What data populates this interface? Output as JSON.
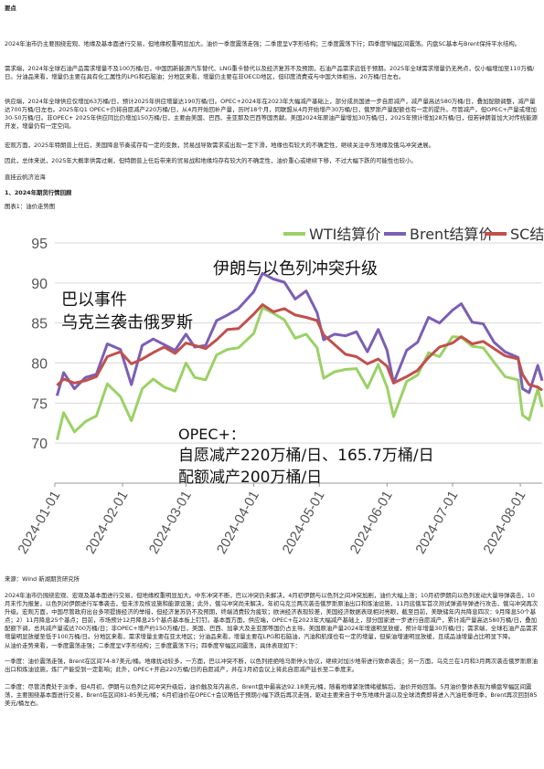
{
  "doc": {
    "heading_points": "要点",
    "para1": "2024年油市仍主要围绕宏观、地缘及基本面进行交易，但地缘权重明显加大。油价一季度震荡走强；二季度呈V字形结构；三季度震荡下行；四季度窄幅区间震荡。内盘SC基本与Brent保持平水结构。",
    "para2": "需求端，2024年全球石油产品需求增量不及100万桶/日，中国因新能源汽车替代、LNG重卡替代以及经济复苏不及预期，石油产品需求远低于预期。2025年全球需求增量仍无亮点，仅小幅增加至110万桶/日。分油品来看，增量仍主要在具有化工属性的LPG和石脑油；分地区来看，增量仍主要在非OECD地区，但印度消费或与中国大体相当，20万桶/日左右。",
    "para3": "供应端，2024年全球供应仅增加63万桶/日，预计2025年供应增量达190万桶/日。OPEC+2024年在2023年大幅减产基础上，部分成员国进一步自愿减产，减产量高达580万桶/日，叠加配额调整，减产量达700万桶/日左右。2025年Q1 OPEC+仍将自愿减产220万桶/日，从4月开始回补产量，历时18个月，同联盟从4月开始增产30万桶/日，俄罗斯产量配额也有一定的提升。尽管减产，但OPEC+产量或增加30-50万桶/日。非OPEC+ 2025年供应同比仍增加150万桶/日，主要由美国、巴西、圭亚那及巴西等国贡献。美国2024年原油产量增加30万桶/日，2025年预计增加28万桶/日，但若钟朗普加大对传统能源开发，增量仍有一定空间。",
    "para4": "宏观方面，2025年特朗普上任后，美国降息节奏或存有一定的变数，贸易战导致需求或出现一定下滑，地缘也有较大的不确定性，继续关注中东地缘及俄乌冲突进展。",
    "para5": "因此，总体来说，2025年大概率供需过剩，但特朗普上任后带来的贸易战和地缘均存有较大的不确定性，油价重心或继续下移，不过大幅下跌的可能性也较小。",
    "author": "直挂云帆济沧海",
    "section1": "1、2024年期货行情回顾",
    "figure_caption": "图表1：油价走势图",
    "source": "来源：Wind 新湖期货研究所",
    "para6": "2024年油市仍围绕宏观、宏观及基本面进行交易，但地缘权重明显加大。中东冲突不断，巴以冲突仍未解决，4月初伊朗与以色列之间冲突加剧，油价大幅上涨；10月初伊朗向以色列发动大量导弹袭击，10月末作为报复，以色列对伊朗进行军事袭击，但未涉及核设施和能源设施；此外，俄乌冲突尚未解决，年初乌克兰两次袭击俄罗斯原油出口和炼油设施，11月底俄军首次测试弹道导弹进行攻击，俄乌冲突再次升级。宏观方面，中国尽管政府出台多项提振经济的举措，但经济复苏仍不及预期，终端消费较为疲软；欧洲经济表现较差，美国经济数据表现相对亮眼，截至目前，美联储年内共降息四次：9月降息50个基点；2）11月降息25个基点；目前，市场预计12月降息25个基点基本板上钉钉。基本面方面，供应端，OPEC+在2023年大幅减产基础上，部分国家进一步进行自愿减产，累计减产量高达580万桶/日，叠加配额下调，总共减产量或达700万桶/日；非OPEC+增产约150万桶/日，美国、巴西、加拿大及圭亚那等国仍占主导。美国原油产量2024年增速明显放缓，预计年增量30万桶/日；需求端，全球石油产品需求增量明显放缓至低于100万桶/日。分地区来看，需求增量主要在亚太地区；分油品来看，增量主要在LPG和石脑油，汽油和航煤也有一定的增量，但柴油增速明显放缓，且成品油增量占比明显下降。",
    "para7": "从油价走势来看，一季度震荡走强；二季度呈V字形结构；三季度震荡下行；四季度窄幅区间震荡，具体表现如下：",
    "para8": "一季度：油价震荡走强，Brent在区间74-87美元/桶。地缘扰动较多，一方面，巴以冲突不断，以色列拒绝哈马斯停火协议，继续对加沙地带进行致命袭击；另一方面，乌克兰在1月和3月两次袭击俄罗斯原油出口和炼油设施，炼厂产能受到一定影响；此外，OPEC+开启220万桶/日的自愿减产，并在3月初会议上将此自愿减产延长至二季度末。",
    "para9": "二季度：尽管消费处于淡季，但4月初，伊朗与以色列之间冲突升级后，油价触及年内高点，Brent盘中最高达92.18美元/桶，随着地缘紧张情绪缓解后，油价开始回落。5月油价整体表现为横盘窄幅区间震荡，主要围绕基本面进行交易，Brent在区间81-85美元/桶；6月初油价在OPEC+会议略低于预期小幅下跌后再次走强，驱动主要来自于中东地缘升温以及全球消费即将进入汽油旺季旺季，Brent再次回到85美元/桶左右。"
  },
  "chart_data": {
    "type": "line",
    "title": "",
    "xlabel": "",
    "ylabel": "",
    "ylim": [
      65,
      95
    ],
    "yticks": [
      70,
      75,
      80,
      85,
      90,
      95
    ],
    "x_ticks": [
      "2024-01-01",
      "2024-02-01",
      "2024-03-01",
      "2024-04-01",
      "2024-05-01",
      "2024-06-01",
      "2024-07-01",
      "2024-08-01"
    ],
    "x_start": "2024-01-01",
    "x_end": "2024-08-11",
    "legend": "top-right",
    "series": [
      {
        "name": "WTI结算价",
        "color": "#9bd166",
        "points": [
          [
            "2024-01-02",
            70.4
          ],
          [
            "2024-01-05",
            73.8
          ],
          [
            "2024-01-10",
            71.4
          ],
          [
            "2024-01-15",
            72.7
          ],
          [
            "2024-01-20",
            73.4
          ],
          [
            "2024-01-25",
            77.4
          ],
          [
            "2024-01-31",
            75.8
          ],
          [
            "2024-02-05",
            72.8
          ],
          [
            "2024-02-10",
            76.8
          ],
          [
            "2024-02-15",
            78.0
          ],
          [
            "2024-02-20",
            77.0
          ],
          [
            "2024-02-25",
            76.5
          ],
          [
            "2024-03-01",
            80.0
          ],
          [
            "2024-03-05",
            78.2
          ],
          [
            "2024-03-10",
            77.9
          ],
          [
            "2024-03-15",
            81.0
          ],
          [
            "2024-03-20",
            81.7
          ],
          [
            "2024-03-25",
            81.9
          ],
          [
            "2024-04-01",
            83.7
          ],
          [
            "2024-04-05",
            86.9
          ],
          [
            "2024-04-10",
            86.2
          ],
          [
            "2024-04-15",
            85.4
          ],
          [
            "2024-04-20",
            83.1
          ],
          [
            "2024-04-25",
            83.6
          ],
          [
            "2024-04-30",
            81.9
          ],
          [
            "2024-05-03",
            78.1
          ],
          [
            "2024-05-08",
            78.9
          ],
          [
            "2024-05-13",
            79.2
          ],
          [
            "2024-05-18",
            79.3
          ],
          [
            "2024-05-23",
            76.9
          ],
          [
            "2024-05-28",
            79.8
          ],
          [
            "2024-06-01",
            77.0
          ],
          [
            "2024-06-04",
            73.3
          ],
          [
            "2024-06-10",
            77.7
          ],
          [
            "2024-06-15",
            78.5
          ],
          [
            "2024-06-20",
            81.3
          ],
          [
            "2024-06-25",
            80.8
          ],
          [
            "2024-07-01",
            83.3
          ],
          [
            "2024-07-05",
            83.2
          ],
          [
            "2024-07-10",
            82.1
          ],
          [
            "2024-07-15",
            81.9
          ],
          [
            "2024-07-20",
            80.1
          ],
          [
            "2024-07-25",
            78.3
          ],
          [
            "2024-07-31",
            77.9
          ],
          [
            "2024-08-02",
            73.5
          ],
          [
            "2024-08-05",
            72.9
          ],
          [
            "2024-08-09",
            76.8
          ],
          [
            "2024-08-11",
            74.5
          ]
        ]
      },
      {
        "name": "Brent结算价",
        "color": "#7b5fb3",
        "points": [
          [
            "2024-01-02",
            75.9
          ],
          [
            "2024-01-05",
            78.8
          ],
          [
            "2024-01-10",
            76.8
          ],
          [
            "2024-01-15",
            78.2
          ],
          [
            "2024-01-20",
            78.6
          ],
          [
            "2024-01-25",
            82.4
          ],
          [
            "2024-01-31",
            81.7
          ],
          [
            "2024-02-05",
            77.3
          ],
          [
            "2024-02-10",
            82.2
          ],
          [
            "2024-02-15",
            83.0
          ],
          [
            "2024-02-20",
            82.3
          ],
          [
            "2024-02-25",
            81.6
          ],
          [
            "2024-03-01",
            83.6
          ],
          [
            "2024-03-05",
            82.0
          ],
          [
            "2024-03-10",
            82.2
          ],
          [
            "2024-03-15",
            85.3
          ],
          [
            "2024-03-20",
            86.0
          ],
          [
            "2024-03-25",
            86.8
          ],
          [
            "2024-04-01",
            88.9
          ],
          [
            "2024-04-05",
            91.2
          ],
          [
            "2024-04-10",
            90.5
          ],
          [
            "2024-04-15",
            90.1
          ],
          [
            "2024-04-20",
            88.0
          ],
          [
            "2024-04-25",
            89.0
          ],
          [
            "2024-04-30",
            86.3
          ],
          [
            "2024-05-03",
            82.9
          ],
          [
            "2024-05-08",
            83.6
          ],
          [
            "2024-05-13",
            83.4
          ],
          [
            "2024-05-18",
            83.9
          ],
          [
            "2024-05-23",
            81.4
          ],
          [
            "2024-05-28",
            84.2
          ],
          [
            "2024-06-01",
            81.6
          ],
          [
            "2024-06-04",
            77.5
          ],
          [
            "2024-06-10",
            81.6
          ],
          [
            "2024-06-15",
            82.6
          ],
          [
            "2024-06-20",
            85.7
          ],
          [
            "2024-06-25",
            85.0
          ],
          [
            "2024-07-01",
            86.6
          ],
          [
            "2024-07-05",
            87.4
          ],
          [
            "2024-07-10",
            85.1
          ],
          [
            "2024-07-15",
            84.9
          ],
          [
            "2024-07-20",
            82.6
          ],
          [
            "2024-07-25",
            81.4
          ],
          [
            "2024-07-31",
            80.7
          ],
          [
            "2024-08-02",
            76.8
          ],
          [
            "2024-08-05",
            76.3
          ],
          [
            "2024-08-09",
            79.7
          ],
          [
            "2024-08-11",
            77.8
          ]
        ]
      },
      {
        "name": "SC结算价",
        "color": "#c0504d",
        "points": [
          [
            "2024-01-02",
            77.2
          ],
          [
            "2024-01-05",
            78.0
          ],
          [
            "2024-01-10",
            77.5
          ],
          [
            "2024-01-15",
            77.8
          ],
          [
            "2024-01-20",
            78.3
          ],
          [
            "2024-01-25",
            80.8
          ],
          [
            "2024-01-31",
            81.4
          ],
          [
            "2024-02-05",
            79.9
          ],
          [
            "2024-02-10",
            80.5
          ],
          [
            "2024-02-15",
            81.3
          ],
          [
            "2024-02-20",
            82.0
          ],
          [
            "2024-02-25",
            81.2
          ],
          [
            "2024-03-01",
            82.5
          ],
          [
            "2024-03-05",
            82.2
          ],
          [
            "2024-03-10",
            81.8
          ],
          [
            "2024-03-15",
            82.9
          ],
          [
            "2024-03-20",
            84.2
          ],
          [
            "2024-03-25",
            84.3
          ],
          [
            "2024-04-01",
            86.1
          ],
          [
            "2024-04-05",
            87.3
          ],
          [
            "2024-04-10",
            86.4
          ],
          [
            "2024-04-15",
            86.8
          ],
          [
            "2024-04-20",
            86.0
          ],
          [
            "2024-04-25",
            85.7
          ],
          [
            "2024-04-30",
            85.3
          ],
          [
            "2024-05-03",
            83.5
          ],
          [
            "2024-05-08",
            82.3
          ],
          [
            "2024-05-13",
            81.1
          ],
          [
            "2024-05-18",
            80.8
          ],
          [
            "2024-05-23",
            79.9
          ],
          [
            "2024-05-28",
            80.5
          ],
          [
            "2024-06-01",
            79.6
          ],
          [
            "2024-06-04",
            77.5
          ],
          [
            "2024-06-10",
            78.3
          ],
          [
            "2024-06-15",
            79.1
          ],
          [
            "2024-06-20",
            80.7
          ],
          [
            "2024-06-25",
            82.0
          ],
          [
            "2024-07-01",
            82.5
          ],
          [
            "2024-07-05",
            83.3
          ],
          [
            "2024-07-10",
            82.4
          ],
          [
            "2024-07-15",
            82.7
          ],
          [
            "2024-07-20",
            81.8
          ],
          [
            "2024-07-25",
            80.9
          ],
          [
            "2024-07-31",
            80.5
          ],
          [
            "2024-08-02",
            78.6
          ],
          [
            "2024-08-05",
            77.3
          ],
          [
            "2024-08-09",
            77.0
          ],
          [
            "2024-08-11",
            76.6
          ]
        ]
      }
    ],
    "annotations": [
      {
        "text": "伊朗与以色列冲突升级"
      },
      {
        "text": "巴以事件"
      },
      {
        "text": "乌克兰袭击俄罗斯"
      },
      {
        "text": "OPEC+："
      },
      {
        "text": "自愿减产220万桶/日、165.7万桶/日"
      },
      {
        "text": "配额减产200万桶/日"
      }
    ]
  }
}
